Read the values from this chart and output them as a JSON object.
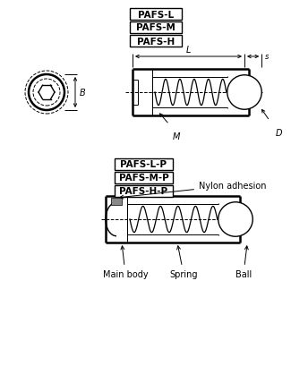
{
  "bg_color": "#ffffff",
  "line_color": "#000000",
  "labels_top": [
    "PAFS-L",
    "PAFS-M",
    "PAFS-H"
  ],
  "labels_bottom": [
    "PAFS-L-P",
    "PAFS-M-P",
    "PAFS-H-P"
  ],
  "ann_bottom": [
    "Nylon adhesion",
    "Main body",
    "Spring",
    "Ball"
  ],
  "dim_L": "L",
  "dim_s": "s",
  "dim_M": "M",
  "dim_D": "D",
  "dim_B": "B",
  "label_fontsize": 7.5,
  "ann_fontsize": 7.0
}
